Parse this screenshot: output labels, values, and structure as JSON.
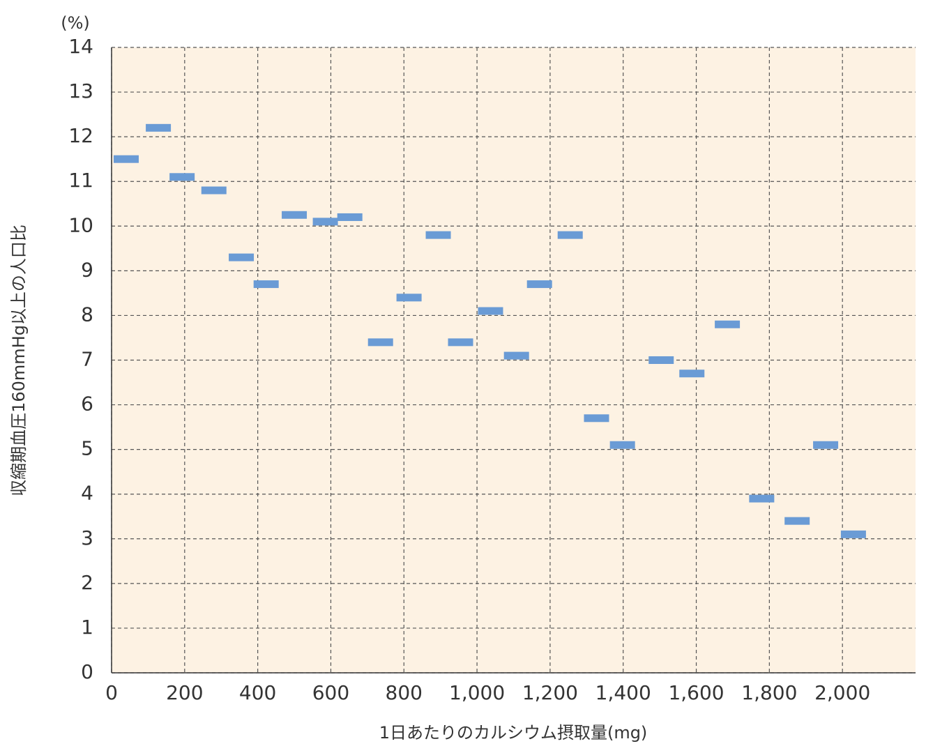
{
  "chart_data": {
    "type": "scatter",
    "y_unit": "(%)",
    "x_label": "1日あたりのカルシウム摂取量(mg)",
    "y_label": "収縮期血圧160mmHg以上の人口比",
    "x": [
      40,
      128,
      193,
      280,
      355,
      423,
      500,
      585,
      652,
      736,
      814,
      894,
      955,
      1037,
      1108,
      1171,
      1255,
      1327,
      1398,
      1504,
      1588,
      1685,
      1779,
      1876,
      1954,
      2030
    ],
    "values": [
      11.5,
      12.2,
      11.1,
      10.8,
      9.3,
      8.7,
      10.25,
      10.1,
      10.2,
      7.4,
      8.4,
      9.8,
      7.4,
      8.1,
      7.1,
      8.7,
      9.8,
      5.7,
      5.1,
      7.0,
      6.7,
      7.8,
      3.9,
      3.4,
      5.1,
      3.1
    ],
    "color": "#6a9bd5",
    "background": "#fdf2e3",
    "grid": true,
    "xlim": [
      0,
      2200
    ],
    "ylim": [
      0,
      14
    ],
    "xticks": [
      0,
      200,
      400,
      600,
      800,
      {
        "value": 1000,
        "label": "1,000"
      },
      {
        "value": 1200,
        "label": "1,200"
      },
      {
        "value": 1400,
        "label": "1,400"
      },
      {
        "value": 1600,
        "label": "1,600"
      },
      {
        "value": 1800,
        "label": "1,800"
      },
      {
        "value": 2000,
        "label": "2,000"
      }
    ],
    "yticks": [
      0,
      1,
      2,
      3,
      4,
      5,
      6,
      7,
      8,
      9,
      10,
      11,
      12,
      13,
      14
    ]
  }
}
